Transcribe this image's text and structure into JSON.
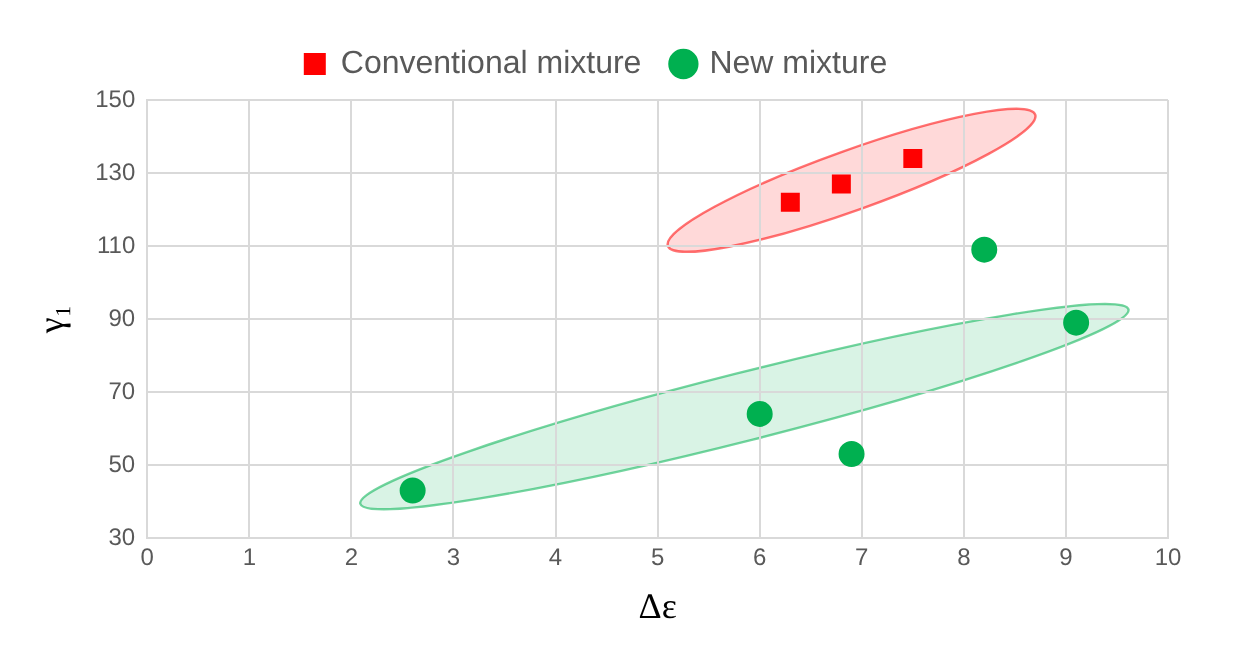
{
  "chart_data": {
    "type": "scatter",
    "xlabel": "Δε",
    "ylabel": "γ₁",
    "series": [
      {
        "name": "Conventional mixture",
        "color": "#ff0000",
        "marker": "square",
        "x": [
          6.3,
          6.8,
          7.5
        ],
        "values": [
          122,
          127,
          134
        ]
      },
      {
        "name": "New mixture",
        "color": "#00b050",
        "marker": "circle",
        "x": [
          2.6,
          6.0,
          6.9,
          8.2,
          9.1
        ],
        "values": [
          43,
          64,
          53,
          109,
          89
        ]
      }
    ],
    "xlim": [
      0,
      10
    ],
    "xticks": [
      0,
      1,
      2,
      3,
      4,
      5,
      6,
      7,
      8,
      9,
      10
    ],
    "ylim": [
      30,
      150
    ],
    "yticks": [
      30,
      50,
      70,
      90,
      110,
      130,
      150
    ],
    "grid": true,
    "legend": "top"
  }
}
